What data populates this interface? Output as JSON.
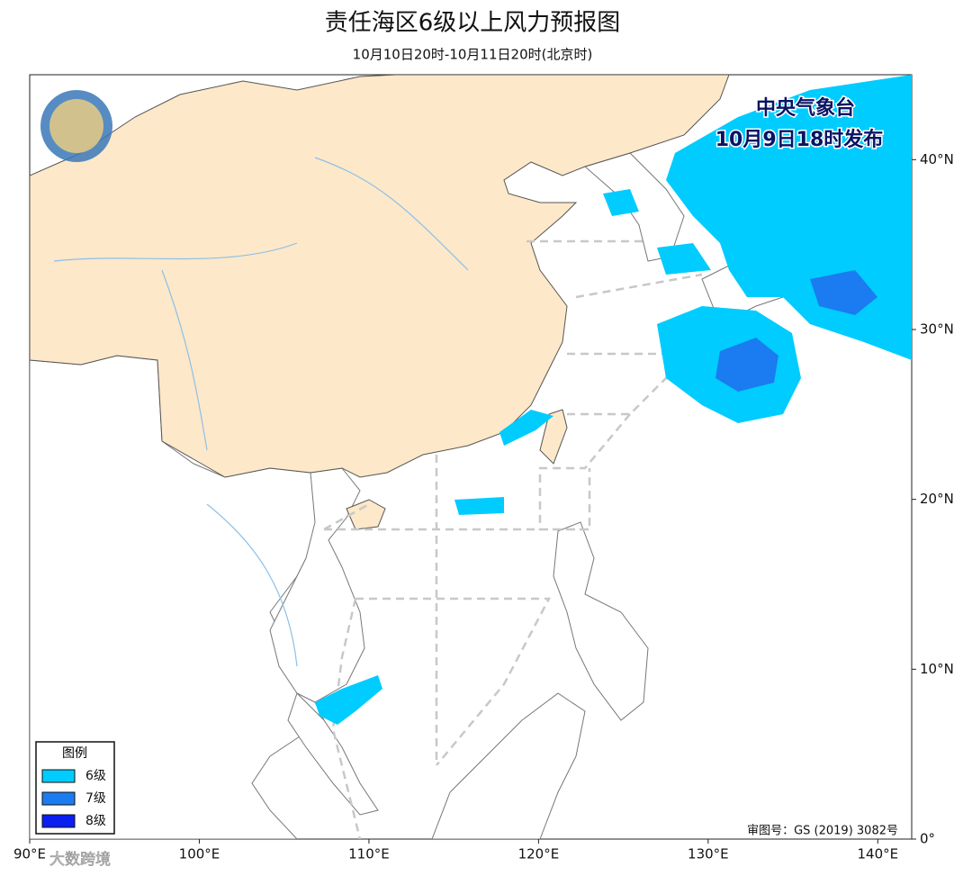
{
  "header": {
    "title": "责任海区6级以上风力预报图",
    "subtitle": "10月10日20时-10月11日20时(北京时)"
  },
  "issuer": {
    "agency": "中央气象台",
    "time": "10月9日18时发布"
  },
  "map": {
    "xlim": [
      90,
      142
    ],
    "ylim": [
      0,
      45
    ],
    "xticks": [
      {
        "value": 90,
        "label": "90°E"
      },
      {
        "value": 100,
        "label": "100°E"
      },
      {
        "value": 110,
        "label": "110°E"
      },
      {
        "value": 120,
        "label": "120°E"
      },
      {
        "value": 130,
        "label": "130°E"
      },
      {
        "value": 140,
        "label": "140°E"
      }
    ],
    "yticks": [
      {
        "value": 0,
        "label": "0°"
      },
      {
        "value": 10,
        "label": "10°N"
      },
      {
        "value": 20,
        "label": "20°N"
      },
      {
        "value": 30,
        "label": "30°N"
      },
      {
        "value": 40,
        "label": "40°N"
      }
    ]
  },
  "legend": {
    "title": "图例",
    "items": [
      {
        "name": "6级",
        "color": "#00ccff"
      },
      {
        "name": "7级",
        "color": "#1a7cf0"
      },
      {
        "name": "8级",
        "color": "#0a1ff0"
      }
    ]
  },
  "approval": "审图号：GS (2019) 3082号",
  "watermark": "大数跨境"
}
